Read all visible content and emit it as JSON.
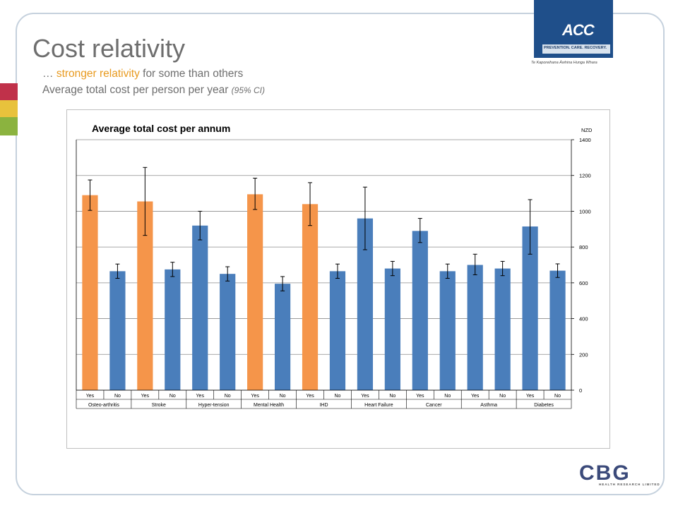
{
  "slide": {
    "title": "Cost relativity",
    "subtitle_prefix": "… ",
    "subtitle_highlight": "stronger relativity",
    "subtitle_suffix": " for some than others",
    "subtitle2_main": "Average total cost per person per year ",
    "subtitle2_ci": "(95% CI)"
  },
  "logos": {
    "acc_mark": "ACC",
    "acc_tagline": "PREVENTION. CARE. RECOVERY.",
    "acc_maori": "Te Kaporeihana Āwhina Hunga Whara",
    "cbg_letters": "CBG",
    "cbg_sub": "HEALTH RESEARCH LIMITED"
  },
  "colors": {
    "accent_orange": "#f5954a",
    "bar_blue": "#4a7ebb",
    "strip": [
      "#c0314a",
      "#e8c23c",
      "#8bb33f"
    ]
  },
  "chart_data": {
    "type": "bar",
    "title": "Average total cost per annum",
    "ylabel": "NZD",
    "ylim": [
      0,
      1400
    ],
    "yticks": [
      0,
      200,
      400,
      600,
      800,
      1000,
      1200,
      1400
    ],
    "y_axis_side": "right",
    "grid": true,
    "conditions": [
      "Osteo-arthritis",
      "Stroke",
      "Hyper-tension",
      "Mental Health",
      "IHD",
      "Heart Failure",
      "Cancer",
      "Asthma",
      "Diabetes"
    ],
    "categories": [
      "Yes",
      "No",
      "Yes",
      "No",
      "Yes",
      "No",
      "Yes",
      "No",
      "Yes",
      "No",
      "Yes",
      "No",
      "Yes",
      "No",
      "Yes",
      "No",
      "Yes",
      "No"
    ],
    "values": [
      1090,
      665,
      1055,
      675,
      920,
      650,
      1095,
      595,
      1040,
      665,
      960,
      680,
      890,
      665,
      700,
      680,
      915,
      668
    ],
    "ci_low": [
      1005,
      625,
      865,
      635,
      840,
      610,
      1010,
      555,
      920,
      625,
      785,
      640,
      825,
      625,
      645,
      640,
      760,
      630
    ],
    "ci_high": [
      1175,
      705,
      1245,
      715,
      1000,
      690,
      1185,
      635,
      1160,
      705,
      1135,
      720,
      960,
      705,
      760,
      720,
      1065,
      706
    ],
    "highlight": [
      true,
      false,
      true,
      false,
      false,
      false,
      true,
      false,
      true,
      false,
      false,
      false,
      false,
      false,
      false,
      false,
      false,
      false
    ]
  }
}
